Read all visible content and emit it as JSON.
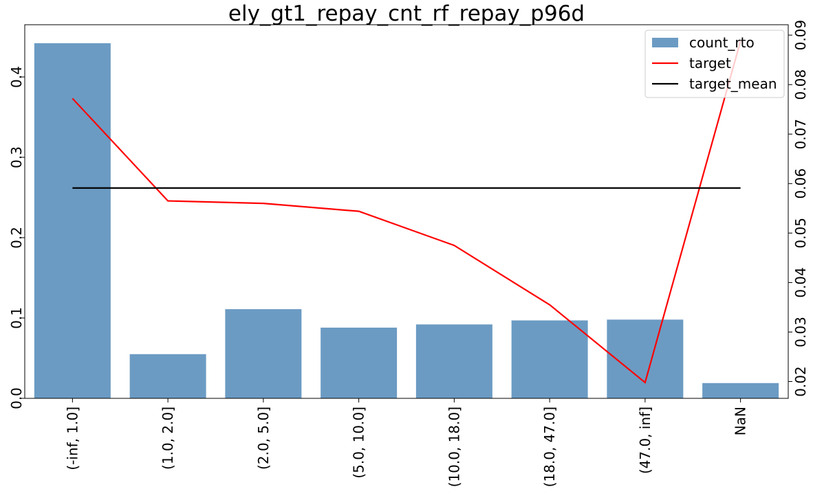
{
  "chart_data": {
    "type": "bar",
    "title": "ely_gt1_repay_cnt_rf_repay_p96d",
    "categories": [
      "(-inf, 1.0]",
      "(1.0, 2.0]",
      "(2.0, 5.0]",
      "(5.0, 10.0]",
      "(10.0, 18.0]",
      "(18.0, 47.0]",
      "(47.0, inf]",
      "NaN"
    ],
    "series": [
      {
        "name": "count_rto",
        "type": "bar",
        "axis": "left",
        "color": "#4682b4",
        "values": [
          0.442,
          0.055,
          0.111,
          0.088,
          0.092,
          0.097,
          0.098,
          0.019
        ]
      },
      {
        "name": "target",
        "type": "line",
        "axis": "right",
        "color": "#ff0000",
        "values": [
          0.0772,
          0.0565,
          0.056,
          0.0544,
          0.0475,
          0.0355,
          0.0198,
          0.0888
        ]
      },
      {
        "name": "target_mean",
        "type": "line",
        "axis": "right",
        "color": "#000000",
        "values": [
          0.0591,
          0.0591,
          0.0591,
          0.0591,
          0.0591,
          0.0591,
          0.0591,
          0.0591
        ]
      }
    ],
    "y_left": {
      "ylim": [
        0,
        0.465
      ],
      "ticks": [
        0.0,
        0.1,
        0.2,
        0.3,
        0.4
      ],
      "tick_labels": [
        "0.0",
        "0.1",
        "0.2",
        "0.3",
        "0.4"
      ]
    },
    "y_right": {
      "ylim": [
        0.0166,
        0.0921
      ],
      "ticks": [
        0.02,
        0.03,
        0.04,
        0.05,
        0.06,
        0.07,
        0.08,
        0.09
      ],
      "tick_labels": [
        "0.02",
        "0.03",
        "0.04",
        "0.05",
        "0.06",
        "0.07",
        "0.08",
        "0.09"
      ]
    },
    "legend": {
      "placement": "top-right",
      "entries": [
        "count_rto",
        "target",
        "target_mean"
      ]
    },
    "grid": false,
    "xlabel": "",
    "ylabel": ""
  }
}
